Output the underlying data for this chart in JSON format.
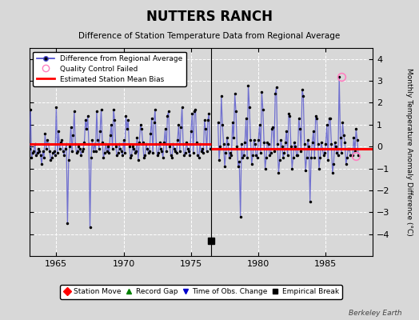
{
  "title": "NUTTERS RANCH",
  "subtitle": "Difference of Station Temperature Data from Regional Average",
  "ylabel_right": "Monthly Temperature Anomaly Difference (°C)",
  "xlim": [
    1963.0,
    1988.5
  ],
  "ylim": [
    -5,
    4.5
  ],
  "yticks": [
    -4,
    -3,
    -2,
    -1,
    0,
    1,
    2,
    3,
    4
  ],
  "xticks": [
    1965,
    1970,
    1975,
    1980,
    1985
  ],
  "background_color": "#d8d8d8",
  "plot_bg_color": "#d8d8d8",
  "bias_line_segment1": {
    "x": [
      1963.0,
      1976.5
    ],
    "y": [
      0.1,
      0.1
    ]
  },
  "bias_line_segment2": {
    "x": [
      1976.5,
      1988.5
    ],
    "y": [
      -0.1,
      -0.1
    ]
  },
  "gap_x": 1976.5,
  "empirical_break_x": 1976.5,
  "empirical_break_y": -4.3,
  "qc_failed_points": [
    [
      1986.17,
      3.2
    ],
    [
      1987.25,
      -0.45
    ]
  ],
  "data_segment1_years": [
    1963.0,
    1963.083,
    1963.167,
    1963.25,
    1963.333,
    1963.417,
    1963.5,
    1963.583,
    1963.667,
    1963.75,
    1963.833,
    1963.917,
    1964.0,
    1964.083,
    1964.167,
    1964.25,
    1964.333,
    1964.417,
    1964.5,
    1964.583,
    1964.667,
    1964.75,
    1964.833,
    1964.917,
    1965.0,
    1965.083,
    1965.167,
    1965.25,
    1965.333,
    1965.417,
    1965.5,
    1965.583,
    1965.667,
    1965.75,
    1965.833,
    1965.917,
    1966.0,
    1966.083,
    1966.167,
    1966.25,
    1966.333,
    1966.417,
    1966.5,
    1966.583,
    1966.667,
    1966.75,
    1966.833,
    1966.917,
    1967.0,
    1967.083,
    1967.167,
    1967.25,
    1967.333,
    1967.417,
    1967.5,
    1967.583,
    1967.667,
    1967.75,
    1967.833,
    1967.917,
    1968.0,
    1968.083,
    1968.167,
    1968.25,
    1968.333,
    1968.417,
    1968.5,
    1968.583,
    1968.667,
    1968.75,
    1968.833,
    1968.917,
    1969.0,
    1969.083,
    1969.167,
    1969.25,
    1969.333,
    1969.417,
    1969.5,
    1969.583,
    1969.667,
    1969.75,
    1969.833,
    1969.917,
    1970.0,
    1970.083,
    1970.167,
    1970.25,
    1970.333,
    1970.417,
    1970.5,
    1970.583,
    1970.667,
    1970.75,
    1970.833,
    1970.917,
    1971.0,
    1971.083,
    1971.167,
    1971.25,
    1971.333,
    1971.417,
    1971.5,
    1971.583,
    1971.667,
    1971.75,
    1971.833,
    1971.917,
    1972.0,
    1972.083,
    1972.167,
    1972.25,
    1972.333,
    1972.417,
    1972.5,
    1972.583,
    1972.667,
    1972.75,
    1972.833,
    1972.917,
    1973.0,
    1973.083,
    1973.167,
    1973.25,
    1973.333,
    1973.417,
    1973.5,
    1973.583,
    1973.667,
    1973.75,
    1973.833,
    1973.917,
    1974.0,
    1974.083,
    1974.167,
    1974.25,
    1974.333,
    1974.417,
    1974.5,
    1974.583,
    1974.667,
    1974.75,
    1974.833,
    1974.917,
    1975.0,
    1975.083,
    1975.167,
    1975.25,
    1975.333,
    1975.417,
    1975.5,
    1975.583,
    1975.667,
    1975.75,
    1975.833,
    1975.917,
    1976.0,
    1976.083,
    1976.167,
    1976.25,
    1976.333,
    1976.417
  ],
  "data_segment1_values": [
    -0.1,
    1.7,
    -0.5,
    -0.3,
    -0.2,
    0.1,
    -0.4,
    -0.3,
    -0.1,
    -0.2,
    -0.4,
    -0.8,
    -0.2,
    -0.5,
    0.6,
    -0.1,
    0.3,
    0.1,
    -0.2,
    -0.6,
    -0.5,
    -0.3,
    -0.2,
    -0.4,
    1.8,
    -0.3,
    0.7,
    -0.1,
    0.2,
    0.3,
    -0.2,
    -0.4,
    -0.1,
    0.1,
    -3.5,
    -0.6,
    0.0,
    0.9,
    -0.2,
    0.5,
    1.6,
    0.1,
    -0.3,
    -0.2,
    0.0,
    -0.1,
    -0.4,
    -0.2,
    -0.1,
    0.2,
    1.2,
    0.8,
    1.4,
    0.1,
    -3.7,
    -0.5,
    0.3,
    -0.2,
    0.1,
    -0.2,
    1.6,
    0.3,
    -0.1,
    0.7,
    1.7,
    0.2,
    -0.5,
    -0.3,
    0.1,
    -0.2,
    0.0,
    -0.3,
    0.5,
    1.0,
    -0.1,
    1.7,
    1.2,
    0.0,
    -0.4,
    -0.3,
    0.1,
    -0.1,
    -0.2,
    -0.4,
    0.3,
    -0.3,
    1.4,
    0.8,
    1.2,
    0.0,
    -0.5,
    -0.4,
    0.0,
    -0.1,
    -0.3,
    -0.2,
    0.4,
    -0.6,
    0.2,
    1.0,
    0.8,
    0.2,
    -0.5,
    -0.4,
    0.1,
    -0.1,
    -0.3,
    -0.2,
    0.6,
    1.3,
    -0.3,
    1.1,
    1.7,
    0.1,
    -0.4,
    -0.3,
    0.2,
    -0.1,
    -0.2,
    -0.5,
    0.2,
    0.8,
    -0.2,
    1.4,
    1.6,
    0.0,
    -0.4,
    -0.5,
    0.1,
    -0.1,
    -0.2,
    -0.3,
    0.3,
    1.0,
    -0.2,
    0.9,
    1.8,
    0.1,
    -0.4,
    -0.3,
    0.2,
    -0.1,
    -0.2,
    -0.4,
    0.7,
    1.5,
    -0.3,
    1.6,
    1.7,
    0.2,
    -0.4,
    -0.5,
    0.1,
    -0.2,
    -0.1,
    -0.3,
    1.2,
    0.8,
    -0.2,
    1.2,
    1.5,
    -0.1
  ],
  "data_segment2_years": [
    1977.0,
    1977.083,
    1977.167,
    1977.25,
    1977.333,
    1977.417,
    1977.5,
    1977.583,
    1977.667,
    1977.75,
    1977.833,
    1977.917,
    1978.0,
    1978.083,
    1978.167,
    1978.25,
    1978.333,
    1978.417,
    1978.5,
    1978.583,
    1978.667,
    1978.75,
    1978.833,
    1978.917,
    1979.0,
    1979.083,
    1979.167,
    1979.25,
    1979.333,
    1979.417,
    1979.5,
    1979.583,
    1979.667,
    1979.75,
    1979.833,
    1979.917,
    1980.0,
    1980.083,
    1980.167,
    1980.25,
    1980.333,
    1980.417,
    1980.5,
    1980.583,
    1980.667,
    1980.75,
    1980.833,
    1980.917,
    1981.0,
    1981.083,
    1981.167,
    1981.25,
    1981.333,
    1981.417,
    1981.5,
    1981.583,
    1981.667,
    1981.75,
    1981.833,
    1981.917,
    1982.0,
    1982.083,
    1982.167,
    1982.25,
    1982.333,
    1982.417,
    1982.5,
    1982.583,
    1982.667,
    1982.75,
    1982.833,
    1982.917,
    1983.0,
    1983.083,
    1983.167,
    1983.25,
    1983.333,
    1983.417,
    1983.5,
    1983.583,
    1983.667,
    1983.75,
    1983.833,
    1983.917,
    1984.0,
    1984.083,
    1984.167,
    1984.25,
    1984.333,
    1984.417,
    1984.5,
    1984.583,
    1984.667,
    1984.75,
    1984.833,
    1984.917,
    1985.0,
    1985.083,
    1985.167,
    1985.25,
    1985.333,
    1985.417,
    1985.5,
    1985.583,
    1985.667,
    1985.75,
    1985.833,
    1985.917,
    1986.0,
    1986.083,
    1986.167,
    1986.25,
    1986.333,
    1986.417,
    1986.5,
    1986.583,
    1986.667,
    1986.75,
    1986.833,
    1986.917,
    1987.0,
    1987.083,
    1987.167,
    1987.25,
    1987.333,
    1987.417
  ],
  "data_segment2_values": [
    1.1,
    -0.6,
    0.0,
    2.3,
    1.0,
    0.1,
    -0.9,
    -0.3,
    0.4,
    0.1,
    -0.5,
    -0.3,
    -0.4,
    1.1,
    0.4,
    2.4,
    1.6,
    0.0,
    -0.9,
    -0.7,
    -3.2,
    0.1,
    -0.5,
    -0.4,
    0.2,
    1.3,
    -0.5,
    2.8,
    1.8,
    0.3,
    -0.8,
    -0.4,
    0.3,
    0.1,
    -0.4,
    -0.5,
    0.3,
    1.0,
    -0.3,
    2.5,
    1.7,
    0.2,
    -1.0,
    -0.5,
    0.2,
    0.1,
    -0.4,
    -0.3,
    0.8,
    0.9,
    -0.2,
    2.4,
    2.7,
    0.1,
    -1.2,
    -0.6,
    0.3,
    0.0,
    -0.5,
    -0.3,
    0.2,
    0.7,
    -0.4,
    1.5,
    1.4,
    0.0,
    -1.0,
    -0.5,
    0.2,
    0.0,
    -0.4,
    -0.4,
    1.3,
    0.8,
    -0.2,
    2.6,
    2.3,
    0.1,
    -1.1,
    -0.5,
    0.3,
    0.0,
    -2.5,
    -0.5,
    0.2,
    0.7,
    -0.5,
    1.4,
    1.3,
    0.1,
    -1.0,
    -0.5,
    0.2,
    -0.1,
    -0.4,
    -0.3,
    0.1,
    1.0,
    -0.6,
    1.3,
    1.3,
    0.1,
    -1.2,
    -0.8,
    0.2,
    0.0,
    -0.3,
    -0.4,
    3.2,
    0.4,
    -0.3,
    1.1,
    0.5,
    0.2,
    -0.8,
    -0.5,
    -0.1,
    -0.1,
    -0.4,
    -0.4,
    -0.4,
    0.4,
    -0.2,
    0.8,
    0.3,
    -0.4
  ]
}
